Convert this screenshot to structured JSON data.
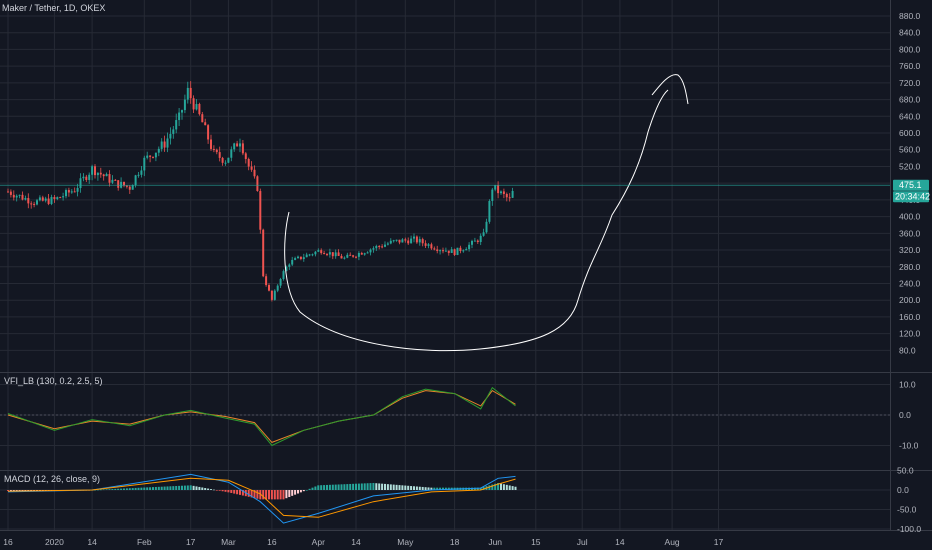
{
  "colors": {
    "background": "#131722",
    "grid": "#262a35",
    "up": "#26a69a",
    "down": "#ef5350",
    "text": "#d1d4dc",
    "drawing": "#ffffff",
    "vfi": "#2e9b2e",
    "vfi_signal": "#e8862a",
    "macd": "#2196f3",
    "macd_signal": "#ff9800"
  },
  "header": {
    "symbol": "Maker / Tether, 1D, OKEX"
  },
  "price_badge": {
    "price": "475.1",
    "countdown": "20:34:42",
    "hidden_label": "440.0"
  },
  "x_axis": {
    "ticks": [
      "16",
      "2020",
      "14",
      "Feb",
      "17",
      "Mar",
      "16",
      "Apr",
      "14",
      "May",
      "18",
      "Jun",
      "15",
      "Jul",
      "14",
      "Aug",
      "17"
    ]
  },
  "chart_data": [
    {
      "type": "candlestick",
      "name": "price",
      "title": "Maker / Tether, 1D, OKEX",
      "ylim": [
        60,
        900
      ],
      "y_ticks": [
        "880.0",
        "840.0",
        "800.0",
        "760.0",
        "720.0",
        "680.0",
        "640.0",
        "600.0",
        "560.0",
        "520.0",
        "480.0",
        "440.0",
        "400.0",
        "360.0",
        "320.0",
        "280.0",
        "240.0",
        "200.0",
        "160.0",
        "120.0",
        "80.0"
      ],
      "last_price": 475.1,
      "approx_close_path": [
        {
          "date": "2019-12-16",
          "close": 460
        },
        {
          "date": "2019-12-25",
          "close": 435
        },
        {
          "date": "2020-01-01",
          "close": 440
        },
        {
          "date": "2020-01-08",
          "close": 465
        },
        {
          "date": "2020-01-14",
          "close": 515
        },
        {
          "date": "2020-01-22",
          "close": 480
        },
        {
          "date": "2020-01-27",
          "close": 470
        },
        {
          "date": "2020-02-01",
          "close": 535
        },
        {
          "date": "2020-02-08",
          "close": 575
        },
        {
          "date": "2020-02-13",
          "close": 635
        },
        {
          "date": "2020-02-16",
          "close": 700
        },
        {
          "date": "2020-02-21",
          "close": 625
        },
        {
          "date": "2020-02-25",
          "close": 550
        },
        {
          "date": "2020-02-29",
          "close": 535
        },
        {
          "date": "2020-03-05",
          "close": 585
        },
        {
          "date": "2020-03-08",
          "close": 520
        },
        {
          "date": "2020-03-11",
          "close": 470
        },
        {
          "date": "2020-03-13",
          "close": 260
        },
        {
          "date": "2020-03-16",
          "close": 200
        },
        {
          "date": "2020-03-19",
          "close": 255
        },
        {
          "date": "2020-03-22",
          "close": 290
        },
        {
          "date": "2020-03-27",
          "close": 305
        },
        {
          "date": "2020-04-02",
          "close": 320
        },
        {
          "date": "2020-04-10",
          "close": 300
        },
        {
          "date": "2020-04-20",
          "close": 325
        },
        {
          "date": "2020-04-27",
          "close": 340
        },
        {
          "date": "2020-05-04",
          "close": 345
        },
        {
          "date": "2020-05-12",
          "close": 325
        },
        {
          "date": "2020-05-18",
          "close": 315
        },
        {
          "date": "2020-05-24",
          "close": 335
        },
        {
          "date": "2020-05-28",
          "close": 355
        },
        {
          "date": "2020-05-31",
          "close": 470
        },
        {
          "date": "2020-06-03",
          "close": 455
        },
        {
          "date": "2020-06-06",
          "close": 440
        },
        {
          "date": "2020-06-08",
          "close": 475.1
        }
      ]
    },
    {
      "type": "line",
      "name": "vfi",
      "title": "VFI_LB (130, 0.2, 2.5, 5)",
      "ylim": [
        -15,
        15
      ],
      "y_ticks": [
        "10.0",
        "0.0",
        "-10.0"
      ],
      "series": [
        {
          "values": [
            [
              "2019-12-16",
              0.5
            ],
            [
              "2020-01-01",
              -5
            ],
            [
              "2020-01-14",
              -1.5
            ],
            [
              "2020-01-27",
              -3.5
            ],
            [
              "2020-02-08",
              0
            ],
            [
              "2020-02-17",
              1.5
            ],
            [
              "2020-02-29",
              -1
            ],
            [
              "2020-03-10",
              -3
            ],
            [
              "2020-03-16",
              -10
            ],
            [
              "2020-03-27",
              -5
            ],
            [
              "2020-04-08",
              -2
            ],
            [
              "2020-04-20",
              0
            ],
            [
              "2020-04-30",
              6
            ],
            [
              "2020-05-08",
              8.5
            ],
            [
              "2020-05-18",
              7
            ],
            [
              "2020-05-27",
              2
            ],
            [
              "2020-05-31",
              9
            ],
            [
              "2020-06-08",
              3
            ]
          ]
        },
        {
          "values": [
            [
              "2019-12-16",
              0
            ],
            [
              "2020-01-01",
              -4.5
            ],
            [
              "2020-01-14",
              -2
            ],
            [
              "2020-01-27",
              -3
            ],
            [
              "2020-02-08",
              0
            ],
            [
              "2020-02-17",
              1
            ],
            [
              "2020-02-29",
              -0.5
            ],
            [
              "2020-03-10",
              -2.5
            ],
            [
              "2020-03-16",
              -9
            ],
            [
              "2020-03-27",
              -5
            ],
            [
              "2020-04-08",
              -2
            ],
            [
              "2020-04-20",
              0
            ],
            [
              "2020-04-30",
              5.5
            ],
            [
              "2020-05-08",
              8
            ],
            [
              "2020-05-18",
              7
            ],
            [
              "2020-05-27",
              3
            ],
            [
              "2020-05-31",
              8
            ],
            [
              "2020-06-08",
              3.5
            ]
          ]
        }
      ]
    },
    {
      "type": "line",
      "name": "macd",
      "title": "MACD (12, 26, close, 9)",
      "ylim": [
        -110,
        55
      ],
      "y_ticks": [
        "50.0",
        "0.0",
        "-50.0",
        "-100.0"
      ],
      "series": [
        {
          "values": [
            [
              "2019-12-16",
              -5
            ],
            [
              "2020-01-14",
              0
            ],
            [
              "2020-02-17",
              40
            ],
            [
              "2020-03-01",
              20
            ],
            [
              "2020-03-12",
              -30
            ],
            [
              "2020-03-20",
              -85
            ],
            [
              "2020-04-01",
              -60
            ],
            [
              "2020-04-20",
              -15
            ],
            [
              "2020-05-10",
              0
            ],
            [
              "2020-05-27",
              5
            ],
            [
              "2020-06-02",
              30
            ],
            [
              "2020-06-08",
              35
            ]
          ]
        },
        {
          "values": [
            [
              "2019-12-16",
              -3
            ],
            [
              "2020-01-14",
              0
            ],
            [
              "2020-02-17",
              30
            ],
            [
              "2020-03-01",
              25
            ],
            [
              "2020-03-12",
              -10
            ],
            [
              "2020-03-20",
              -65
            ],
            [
              "2020-04-01",
              -70
            ],
            [
              "2020-04-20",
              -30
            ],
            [
              "2020-05-10",
              -5
            ],
            [
              "2020-05-27",
              0
            ],
            [
              "2020-06-02",
              15
            ],
            [
              "2020-06-08",
              28
            ]
          ]
        }
      ]
    }
  ]
}
